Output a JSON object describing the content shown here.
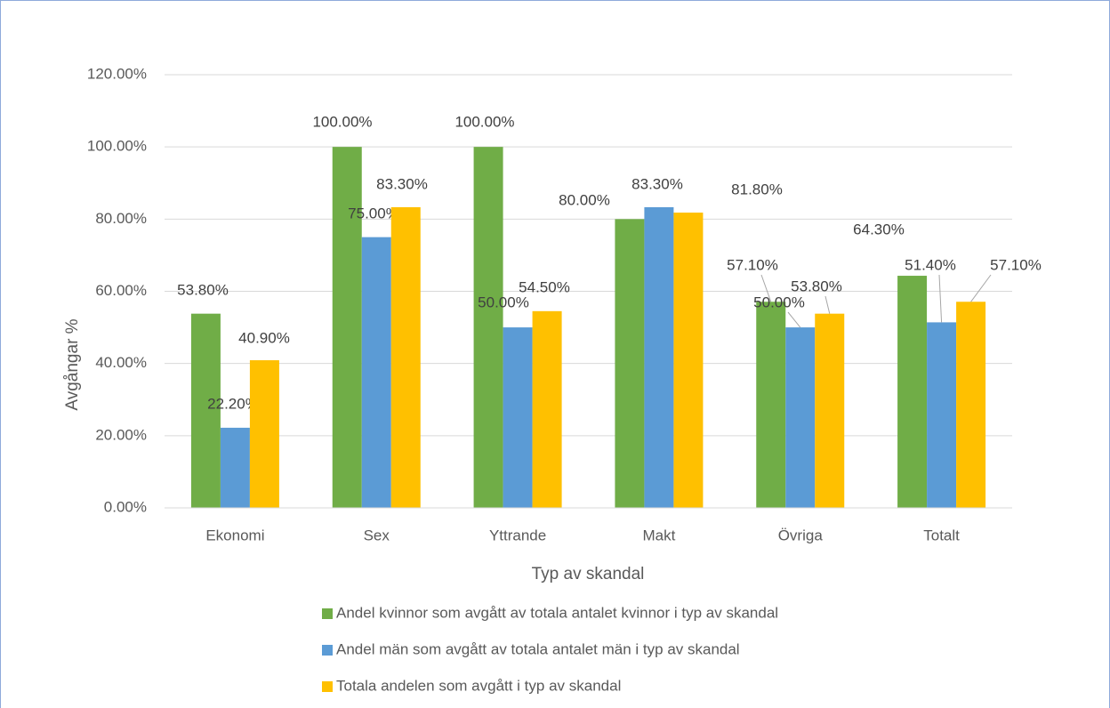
{
  "chart_data": {
    "type": "bar",
    "categories": [
      "Ekonomi",
      "Sex",
      "Yttrande",
      "Makt",
      "Övriga",
      "Totalt"
    ],
    "series": [
      {
        "name": "Andel kvinnor som avgått av totala antalet kvinnor i typ av skandal",
        "color": "#70ad47",
        "values": [
          53.8,
          100,
          100,
          80,
          57.1,
          64.3
        ],
        "value_labels": [
          "53.80%",
          "100.00%",
          "100.00%",
          "80.00%",
          "57.10%",
          "64.30%"
        ]
      },
      {
        "name": "Andel män som avgått av totala antalet män i typ av skandal",
        "color": "#5b9bd5",
        "values": [
          22.2,
          75,
          50,
          83.3,
          50,
          51.4
        ],
        "value_labels": [
          "22.20%",
          "75.00%",
          "50.00%",
          "83.30%",
          "50.00%",
          "51.40%"
        ]
      },
      {
        "name": "Totala andelen som avgått i typ av skandal",
        "color": "#ffc000",
        "values": [
          40.9,
          83.3,
          54.5,
          81.8,
          53.8,
          57.1
        ],
        "value_labels": [
          "40.90%",
          "83.30%",
          "54.50%",
          "81.80%",
          "53.80%",
          "57.10%"
        ]
      }
    ],
    "x_label": "Typ av skandal",
    "y_label": "Avgångar %",
    "ylim": [
      0,
      120
    ],
    "yticks": [
      {
        "value": 0,
        "label": "0.00%"
      },
      {
        "value": 20,
        "label": "20.00%"
      },
      {
        "value": 40,
        "label": "40.00%"
      },
      {
        "value": 60,
        "label": "60.00%"
      },
      {
        "value": 80,
        "label": "80.00%"
      },
      {
        "value": 100,
        "label": "100.00%"
      },
      {
        "value": 120,
        "label": "120.00%"
      }
    ],
    "grid": true,
    "legend": "bottom"
  }
}
